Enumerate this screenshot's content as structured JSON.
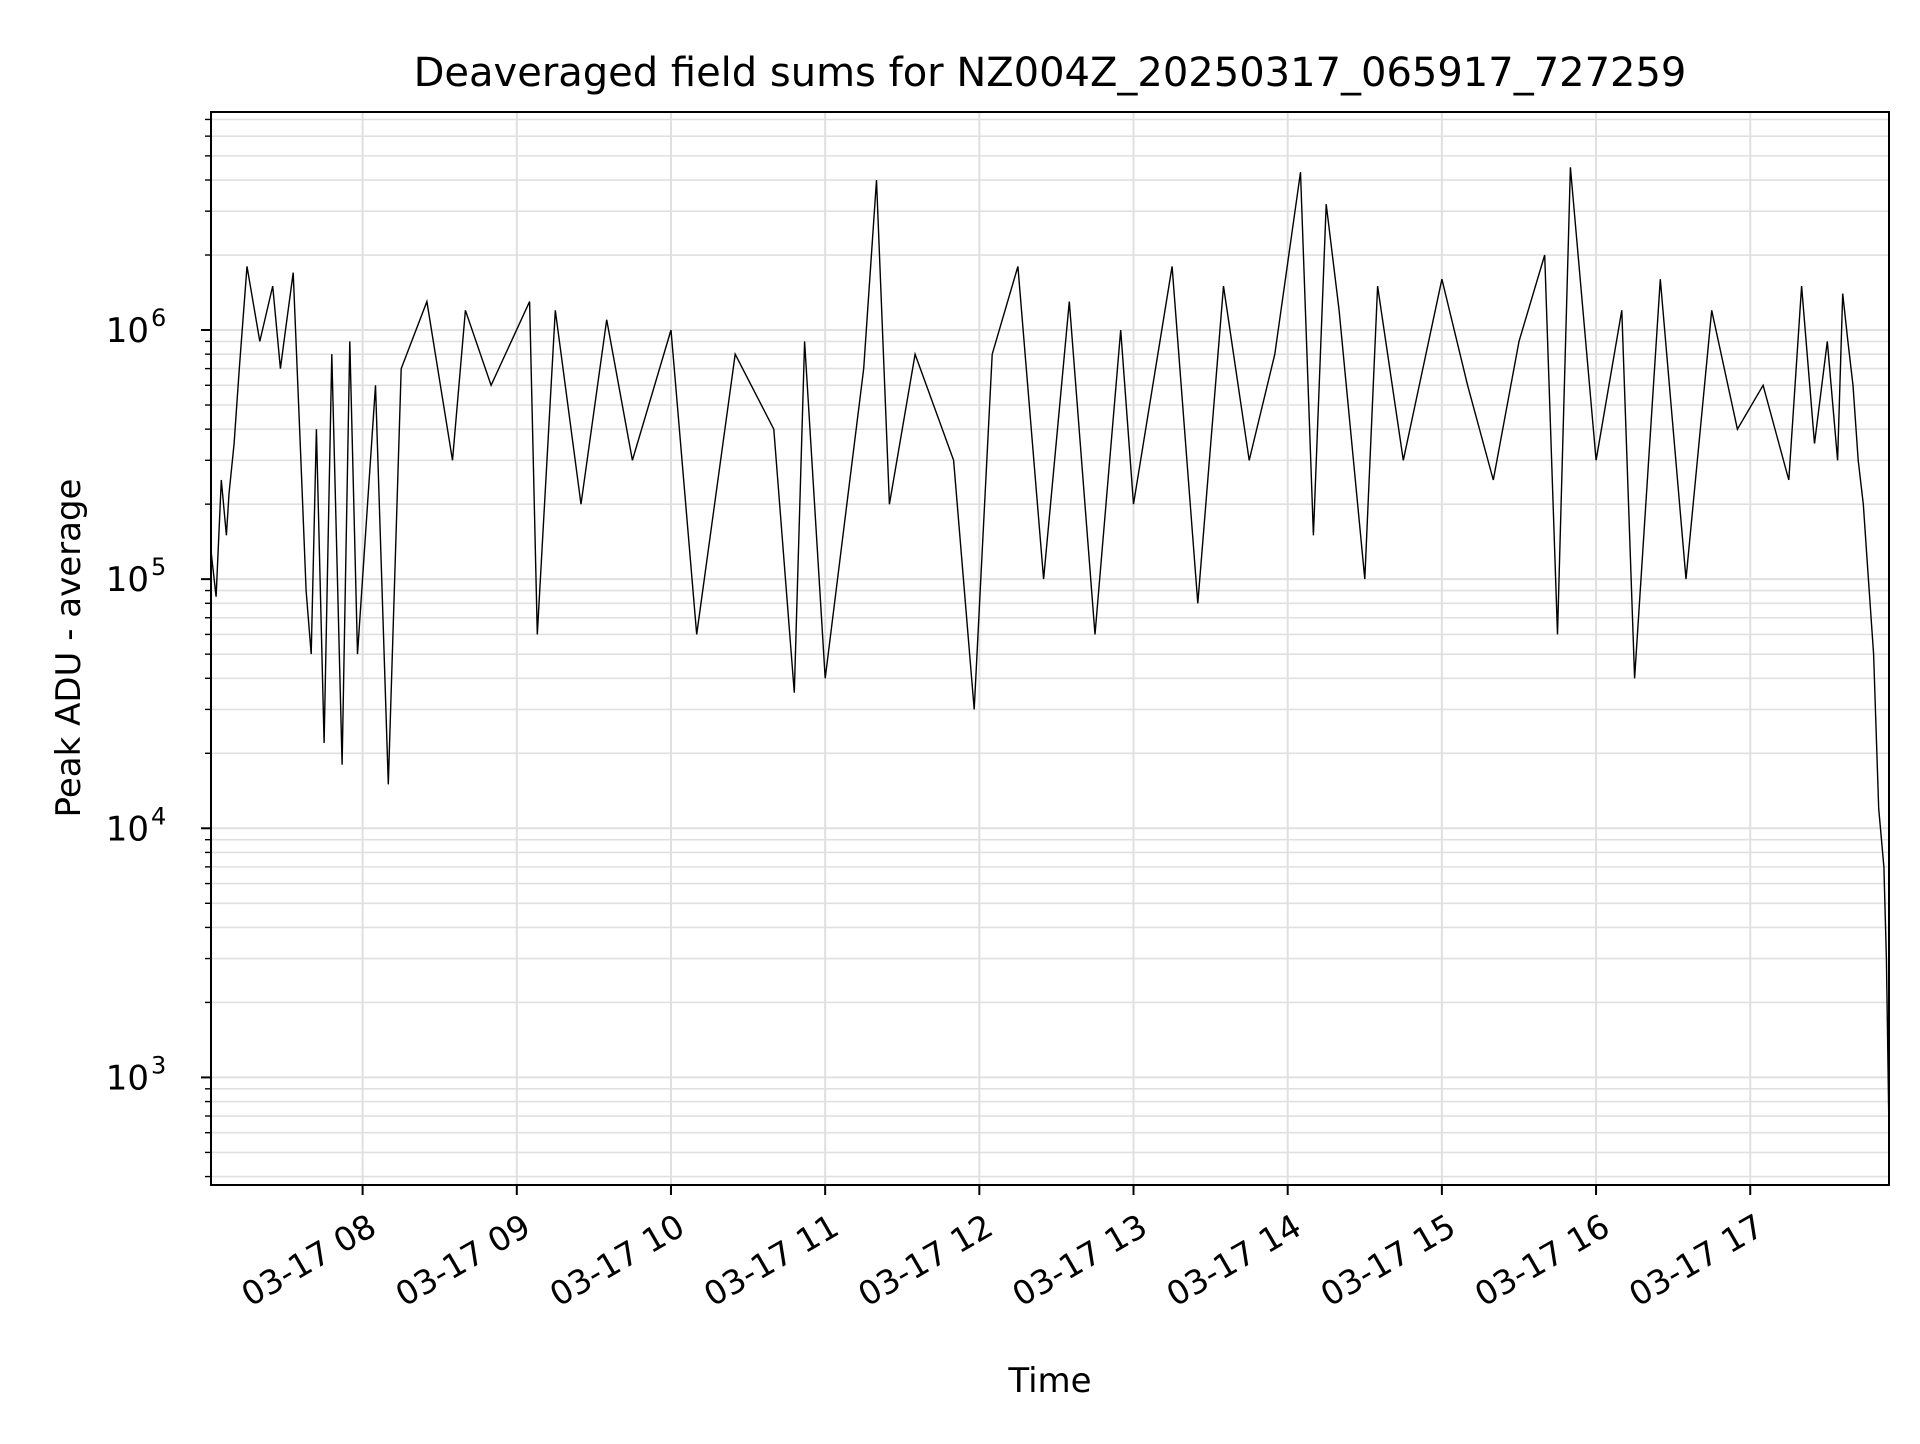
{
  "chart_data": {
    "type": "line",
    "title": "Deaveraged field sums for NZ004Z_20250317_065917_727259",
    "xlabel": "Time",
    "ylabel": "Peak ADU - average",
    "yscale": "log",
    "grid": true,
    "line_color": "#000000",
    "grid_color": "#e0e0e0",
    "x_tick_labels": [
      "03-17 08",
      "03-17 09",
      "03-17 10",
      "03-17 11",
      "03-17 12",
      "03-17 13",
      "03-17 14",
      "03-17 15",
      "03-17 16",
      "03-17 17"
    ],
    "x_tick_values": [
      "2025-03-17 08:00",
      "2025-03-17 09:00",
      "2025-03-17 10:00",
      "2025-03-17 11:00",
      "2025-03-17 12:00",
      "2025-03-17 13:00",
      "2025-03-17 14:00",
      "2025-03-17 15:00",
      "2025-03-17 16:00",
      "2025-03-17 17:00"
    ],
    "xlim": [
      "2025-03-17 07:01",
      "2025-03-17 17:54"
    ],
    "y_tick_labels": [
      {
        "base": "10",
        "exp": "3",
        "value": 1000
      },
      {
        "base": "10",
        "exp": "4",
        "value": 10000
      },
      {
        "base": "10",
        "exp": "5",
        "value": 100000
      },
      {
        "base": "10",
        "exp": "6",
        "value": 1000000
      }
    ],
    "ylim": [
      370,
      7500000
    ],
    "series": [
      {
        "x": [
          "2025-03-17 07:01",
          "2025-03-17 07:03",
          "2025-03-17 07:05",
          "2025-03-17 07:07",
          "2025-03-17 07:08",
          "2025-03-17 07:10",
          "2025-03-17 07:12",
          "2025-03-17 07:15",
          "2025-03-17 07:20",
          "2025-03-17 07:25",
          "2025-03-17 07:28",
          "2025-03-17 07:30",
          "2025-03-17 07:33",
          "2025-03-17 07:36",
          "2025-03-17 07:38",
          "2025-03-17 07:40",
          "2025-03-17 07:42",
          "2025-03-17 07:45",
          "2025-03-17 07:48",
          "2025-03-17 07:52",
          "2025-03-17 07:55",
          "2025-03-17 07:58",
          "2025-03-17 08:05",
          "2025-03-17 08:10",
          "2025-03-17 08:15",
          "2025-03-17 08:25",
          "2025-03-17 08:35",
          "2025-03-17 08:40",
          "2025-03-17 08:50",
          "2025-03-17 09:05",
          "2025-03-17 09:08",
          "2025-03-17 09:15",
          "2025-03-17 09:25",
          "2025-03-17 09:35",
          "2025-03-17 09:45",
          "2025-03-17 10:00",
          "2025-03-17 10:10",
          "2025-03-17 10:25",
          "2025-03-17 10:40",
          "2025-03-17 10:48",
          "2025-03-17 10:52",
          "2025-03-17 11:00",
          "2025-03-17 11:15",
          "2025-03-17 11:20",
          "2025-03-17 11:25",
          "2025-03-17 11:35",
          "2025-03-17 11:50",
          "2025-03-17 11:58",
          "2025-03-17 12:05",
          "2025-03-17 12:15",
          "2025-03-17 12:25",
          "2025-03-17 12:35",
          "2025-03-17 12:45",
          "2025-03-17 12:55",
          "2025-03-17 13:00",
          "2025-03-17 13:15",
          "2025-03-17 13:25",
          "2025-03-17 13:35",
          "2025-03-17 13:45",
          "2025-03-17 13:55",
          "2025-03-17 14:05",
          "2025-03-17 14:10",
          "2025-03-17 14:15",
          "2025-03-17 14:20",
          "2025-03-17 14:30",
          "2025-03-17 14:35",
          "2025-03-17 14:45",
          "2025-03-17 15:00",
          "2025-03-17 15:10",
          "2025-03-17 15:20",
          "2025-03-17 15:30",
          "2025-03-17 15:40",
          "2025-03-17 15:45",
          "2025-03-17 15:50",
          "2025-03-17 16:00",
          "2025-03-17 16:10",
          "2025-03-17 16:15",
          "2025-03-17 16:25",
          "2025-03-17 16:35",
          "2025-03-17 16:45",
          "2025-03-17 16:55",
          "2025-03-17 17:05",
          "2025-03-17 17:15",
          "2025-03-17 17:20",
          "2025-03-17 17:25",
          "2025-03-17 17:30",
          "2025-03-17 17:34",
          "2025-03-17 17:36",
          "2025-03-17 17:38",
          "2025-03-17 17:40",
          "2025-03-17 17:42",
          "2025-03-17 17:44",
          "2025-03-17 17:46",
          "2025-03-17 17:48",
          "2025-03-17 17:50",
          "2025-03-17 17:52",
          "2025-03-17 17:53",
          "2025-03-17 17:54"
        ],
        "y": [
          130000,
          85000,
          250000,
          150000,
          220000,
          350000,
          700000,
          1800000,
          900000,
          1500000,
          700000,
          1000000,
          1700000,
          300000,
          90000,
          50000,
          400000,
          22000,
          800000,
          18000,
          900000,
          50000,
          600000,
          15000,
          700000,
          1300000,
          300000,
          1200000,
          600000,
          1300000,
          60000,
          1200000,
          200000,
          1100000,
          300000,
          1000000,
          60000,
          800000,
          400000,
          35000,
          900000,
          40000,
          700000,
          4000000,
          200000,
          800000,
          300000,
          30000,
          800000,
          1800000,
          100000,
          1300000,
          60000,
          1000000,
          200000,
          1800000,
          80000,
          1500000,
          300000,
          800000,
          4300000,
          150000,
          3200000,
          1200000,
          100000,
          1500000,
          300000,
          1600000,
          600000,
          250000,
          900000,
          2000000,
          60000,
          4500000,
          300000,
          1200000,
          40000,
          1600000,
          100000,
          1200000,
          400000,
          600000,
          250000,
          1500000,
          350000,
          900000,
          300000,
          1400000,
          900000,
          600000,
          300000,
          200000,
          100000,
          50000,
          12000,
          7000,
          3000,
          600
        ]
      }
    ]
  }
}
